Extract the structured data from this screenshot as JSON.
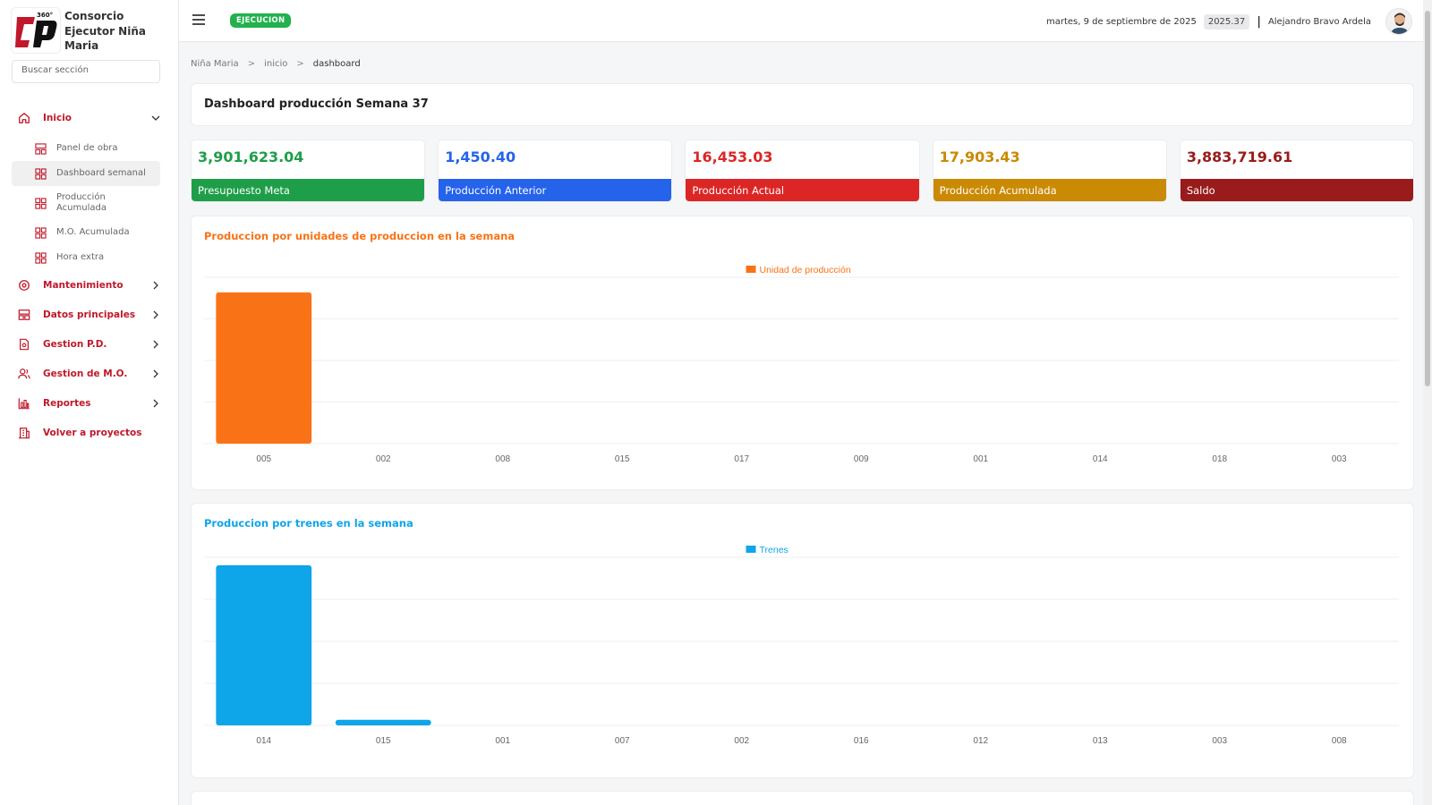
{
  "brand": {
    "name_line1": "Consorcio",
    "name_line2": "Ejecutor Niña",
    "name_line3": "Maria",
    "logo_badge": "360°"
  },
  "search": {
    "placeholder": "Buscar sección"
  },
  "sidebar": {
    "accent": "#c0182a",
    "inicio": {
      "label": "Inicio",
      "icon": "home-icon"
    },
    "sub_items": [
      {
        "label": "Panel de obra",
        "icon": "grid-icon"
      },
      {
        "label": "Dashboard semanal",
        "icon": "grid-icon"
      },
      {
        "label": "Producción Acumulada",
        "icon": "grid-icon"
      },
      {
        "label": "M.O. Acumulada",
        "icon": "grid-icon"
      },
      {
        "label": "Hora extra",
        "icon": "grid-icon"
      }
    ],
    "groups": [
      {
        "label": "Mantenimiento",
        "icon": "settings-icon"
      },
      {
        "label": "Datos principales",
        "icon": "grid-icon"
      },
      {
        "label": "Gestion P.D.",
        "icon": "document-icon"
      },
      {
        "label": "Gestion de M.O.",
        "icon": "users-icon"
      },
      {
        "label": "Reportes",
        "icon": "bar-chart-icon"
      }
    ],
    "back": {
      "label": "Volver a proyectos",
      "icon": "building-icon"
    }
  },
  "topbar": {
    "status": "EJECUCION",
    "status_color": "#22b14c",
    "date": "martes, 9 de septiembre de 2025",
    "version": "2025.37",
    "separator": "|",
    "user": "Alejandro Bravo Ardela"
  },
  "breadcrumb": {
    "items": [
      "Niña Maria",
      "inicio",
      "dashboard"
    ],
    "sep": ">"
  },
  "page": {
    "title": "Dashboard producción Semana 37"
  },
  "kpis": [
    {
      "value": "3,901,623.04",
      "label": "Presupuesto Meta",
      "color": "#1e9e48"
    },
    {
      "value": "1,450.40",
      "label": "Producción Anterior",
      "color": "#2563eb"
    },
    {
      "value": "16,453.03",
      "label": "Producción Actual",
      "color": "#dc2626"
    },
    {
      "value": "17,903.43",
      "label": "Producción Acumulada",
      "color": "#ca8a04"
    },
    {
      "value": "3,883,719.61",
      "label": "Saldo",
      "color": "#991b1b"
    }
  ],
  "chart_data": [
    {
      "type": "bar",
      "title": "Produccion por unidades de produccion en la semana",
      "title_color": "#f97316",
      "series": [
        {
          "name": "Unidad de producción",
          "color": "#f97316",
          "values": [
            100,
            0,
            0,
            0,
            0,
            0,
            0,
            0,
            0,
            0
          ]
        }
      ],
      "categories": [
        "005",
        "002",
        "008",
        "015",
        "017",
        "009",
        "001",
        "014",
        "018",
        "003"
      ],
      "ylim": [
        0,
        110
      ],
      "grid": true,
      "legend": "top-center"
    },
    {
      "type": "bar",
      "title": "Produccion por trenes en la semana",
      "title_color": "#0ea5e9",
      "series": [
        {
          "name": "Trenes",
          "color": "#0ea5e9",
          "values": [
            100,
            3.5,
            0,
            0,
            0,
            0,
            0,
            0,
            0,
            0
          ]
        }
      ],
      "categories": [
        "014",
        "015",
        "001",
        "007",
        "002",
        "016",
        "012",
        "013",
        "003",
        "008"
      ],
      "ylim": [
        0,
        105
      ],
      "grid": true,
      "legend": "top-center"
    }
  ]
}
